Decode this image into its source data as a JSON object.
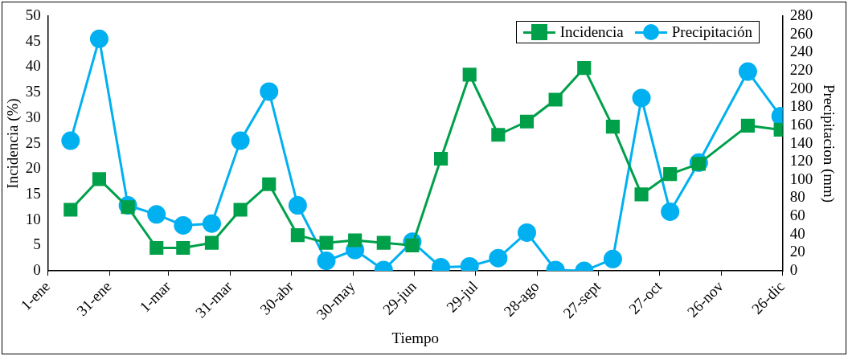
{
  "chart_data": {
    "type": "line",
    "xlabel": "Tiempo",
    "ylabel": "Incidencia (%)",
    "y2label": "Precipitacion (mm)",
    "x": [
      "--01-12",
      "--01-26",
      "--02-09",
      "--02-23",
      "--03-08",
      "--03-22",
      "--04-05",
      "--04-19",
      "--05-03",
      "--05-17",
      "--05-31",
      "--06-14",
      "--06-28",
      "--07-12",
      "--07-26",
      "--08-09",
      "--08-23",
      "--09-06",
      "--09-20",
      "--10-04",
      "--10-18",
      "--11-01",
      "--11-15",
      "--12-09",
      "--12-25"
    ],
    "series": [
      {
        "name": "Incidencia",
        "color": "#00a04a",
        "marker": "square",
        "values": [
          12,
          18,
          12.5,
          4.5,
          4.5,
          5.5,
          12,
          17,
          7,
          5.5,
          6,
          5.5,
          5,
          22,
          38.5,
          26.7,
          29.3,
          33.6,
          39.8,
          28.3,
          15,
          19,
          21,
          28.5,
          27.7
        ]
      },
      {
        "name": "Precipitación",
        "color": "#00b0f0",
        "marker": "circle",
        "axis": "y2",
        "values": [
          143,
          255,
          72,
          62,
          50,
          52,
          143,
          197,
          72,
          11,
          23,
          1,
          32,
          4,
          5,
          14,
          42,
          1,
          0,
          13,
          190,
          65,
          119,
          219,
          170
        ]
      }
    ],
    "xlim": [
      "--01-01",
      "--12-26"
    ],
    "xticks": [
      {
        "value": "--01-01",
        "label": "1-ene"
      },
      {
        "value": "--01-31",
        "label": "31-ene"
      },
      {
        "value": "--03-01",
        "label": "1-mar"
      },
      {
        "value": "--03-31",
        "label": "31-mar"
      },
      {
        "value": "--04-30",
        "label": "30-abr"
      },
      {
        "value": "--05-30",
        "label": "30-may"
      },
      {
        "value": "--06-29",
        "label": "29-jun"
      },
      {
        "value": "--07-29",
        "label": "29-jul"
      },
      {
        "value": "--08-28",
        "label": "28-ago"
      },
      {
        "value": "--09-27",
        "label": "27-sept"
      },
      {
        "value": "--10-27",
        "label": "27-oct"
      },
      {
        "value": "--11-26",
        "label": "26-nov"
      },
      {
        "value": "--12-26",
        "label": "26-dic"
      }
    ],
    "ylim": [
      0,
      50
    ],
    "yticks": [
      0,
      5,
      10,
      15,
      20,
      25,
      30,
      35,
      40,
      45,
      50
    ],
    "y2lim": [
      0,
      280
    ],
    "y2ticks": [
      0,
      20,
      40,
      60,
      80,
      100,
      120,
      140,
      160,
      180,
      200,
      220,
      240,
      260,
      280
    ],
    "grid": false,
    "legend": "top right",
    "line_style": "solid"
  }
}
